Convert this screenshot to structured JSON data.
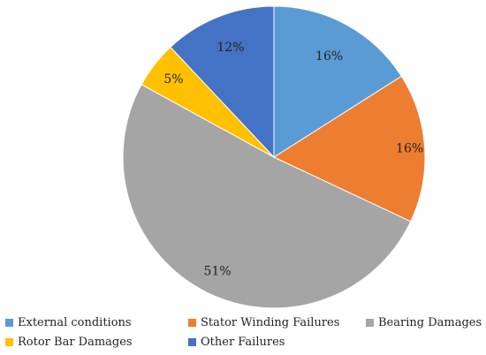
{
  "chart_data": {
    "type": "pie",
    "categories": [
      "External conditions",
      "Stator Winding Failures",
      "Bearing Damages",
      "Rotor Bar Damages",
      "Other Failures"
    ],
    "values": [
      16,
      16,
      51,
      5,
      12
    ],
    "labels": [
      "16%",
      "16%",
      "51%",
      "5%",
      "12%"
    ],
    "colors": [
      "#5B9BD5",
      "#ED7D31",
      "#A5A5A5",
      "#FFC000",
      "#4472C4"
    ],
    "start": "12 o'clock",
    "direction": "clockwise",
    "legend": "bottom"
  }
}
